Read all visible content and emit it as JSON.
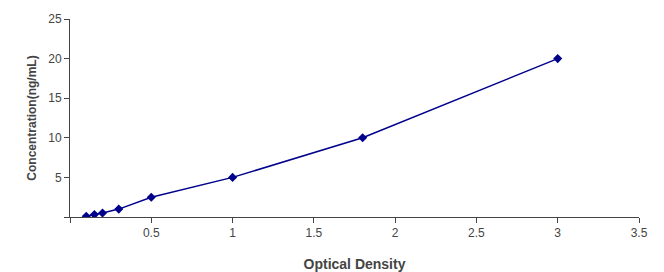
{
  "chart_data": {
    "type": "line",
    "x": [
      0.1,
      0.15,
      0.2,
      0.3,
      0.5,
      1.0,
      1.8,
      3.0
    ],
    "values": [
      0.1,
      0.3,
      0.5,
      1.0,
      2.5,
      5.0,
      10.0,
      20.0
    ],
    "xlabel": "Optical Density",
    "ylabel": "Concentration(ng/mL)",
    "xlim": [
      0,
      3.5
    ],
    "ylim": [
      0,
      25
    ],
    "xticks": [
      {
        "value": 0,
        "label": ""
      },
      0.5,
      1,
      1.5,
      2,
      2.5,
      3,
      3.5
    ],
    "yticks": [
      {
        "value": 0,
        "label": ""
      },
      5,
      10,
      15,
      20,
      25
    ],
    "color": "#00008B",
    "marker": "diamond",
    "line_style": "solid",
    "grid": false
  }
}
